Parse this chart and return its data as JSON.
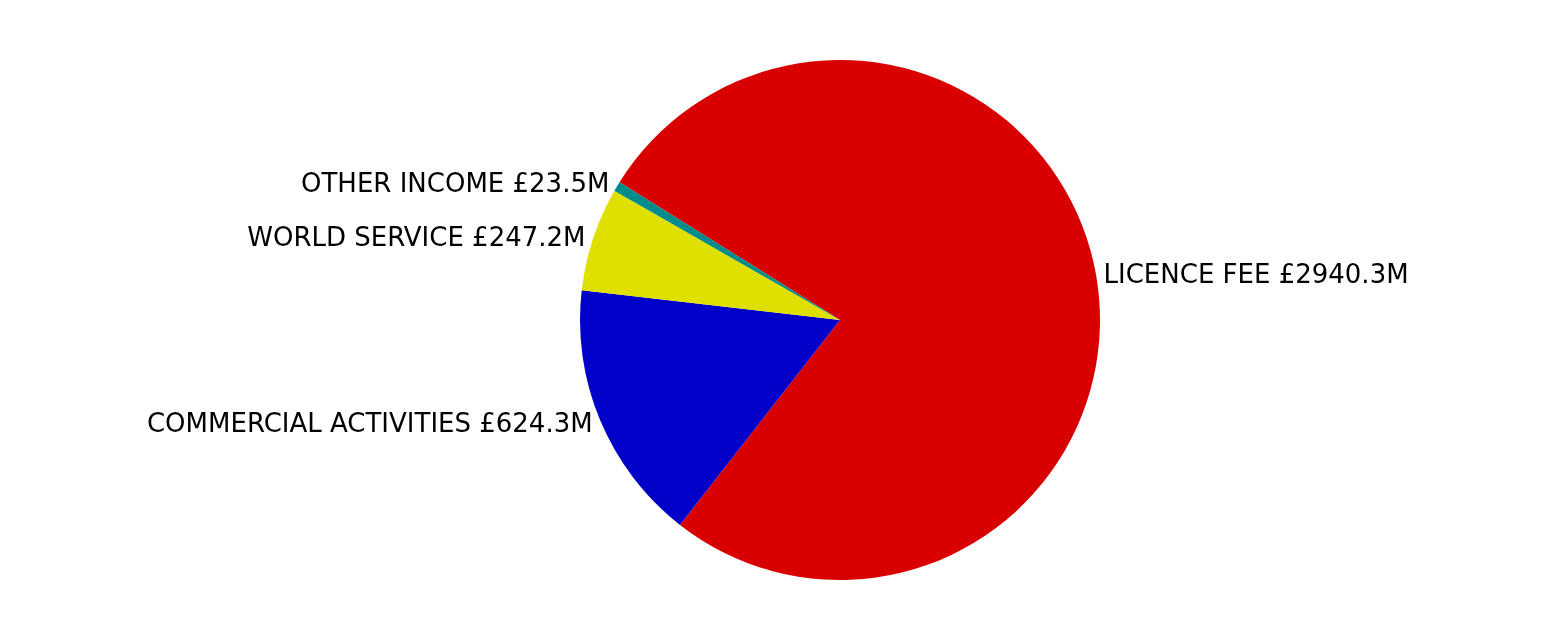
{
  "chart_data": {
    "type": "pie",
    "categories": [
      "LICENCE FEE",
      "COMMERCIAL ACTIVITIES",
      "WORLD SERVICE",
      "OTHER INCOME"
    ],
    "values": [
      2940.3,
      624.3,
      247.2,
      23.5
    ],
    "value_labels": [
      "£2940.3M",
      "£624.3M",
      "£247.2M",
      "£23.5M"
    ],
    "colors": [
      "#d80000",
      "#0000c8",
      "#e0e000",
      "#008b8b"
    ],
    "legend": false
  }
}
